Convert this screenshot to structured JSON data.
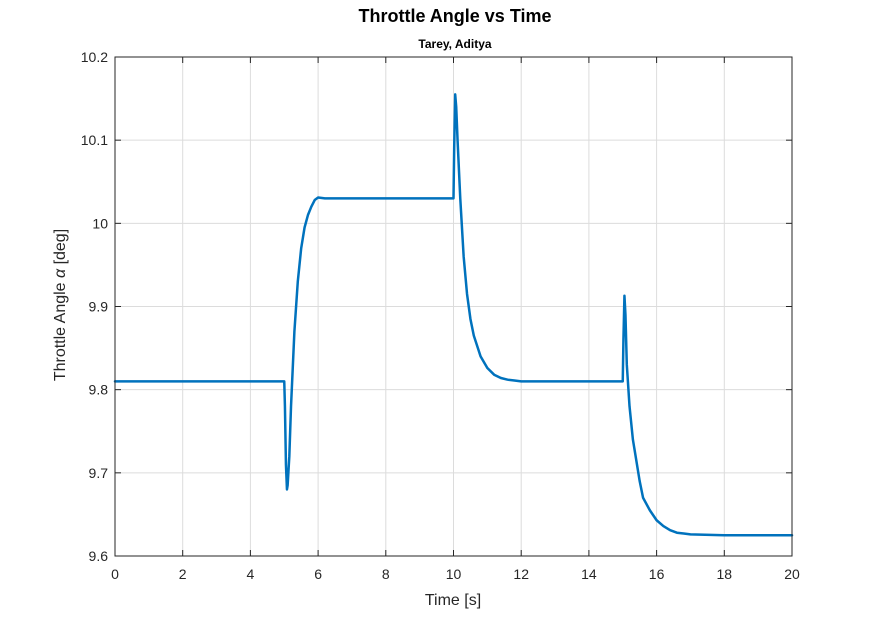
{
  "chart_data": {
    "type": "line",
    "title": "Throttle Angle vs Time",
    "subtitle": "Tarey, Aditya",
    "xlabel": "Time [s]",
    "ylabel_prefix": "Throttle Angle ",
    "ylabel_symbol": "α",
    "ylabel_suffix": " [deg]",
    "xlim": [
      0,
      20
    ],
    "ylim": [
      9.6,
      10.2
    ],
    "xticks": [
      "0",
      "2",
      "4",
      "6",
      "8",
      "10",
      "12",
      "14",
      "16",
      "18",
      "20"
    ],
    "yticks": [
      "9.6",
      "9.7",
      "9.8",
      "9.9",
      "10",
      "10.1",
      "10.2"
    ],
    "grid": true,
    "colors": {
      "line": "#0072BD",
      "grid": "#dcdcdc",
      "axis": "#262626"
    },
    "series": [
      {
        "x": [
          0,
          1,
          2,
          3,
          4,
          5.0,
          5.02,
          5.05,
          5.08,
          5.1,
          5.15,
          5.2,
          5.3,
          5.4,
          5.5,
          5.6,
          5.7,
          5.8,
          5.9,
          6.0,
          6.2,
          6.5,
          7,
          8,
          9,
          10.0,
          10.02,
          10.05,
          10.08,
          10.12,
          10.2,
          10.3,
          10.4,
          10.5,
          10.6,
          10.8,
          11.0,
          11.2,
          11.4,
          11.6,
          11.8,
          12,
          13,
          14,
          15.0,
          15.02,
          15.05,
          15.08,
          15.12,
          15.2,
          15.3,
          15.4,
          15.5,
          15.6,
          15.8,
          16.0,
          16.2,
          16.4,
          16.6,
          16.8,
          17,
          18,
          19,
          20
        ],
        "y": [
          9.81,
          9.81,
          9.81,
          9.81,
          9.81,
          9.81,
          9.78,
          9.71,
          9.68,
          9.685,
          9.72,
          9.78,
          9.87,
          9.93,
          9.97,
          9.995,
          10.01,
          10.02,
          10.028,
          10.031,
          10.03,
          10.03,
          10.03,
          10.03,
          10.03,
          10.03,
          10.09,
          10.155,
          10.14,
          10.1,
          10.03,
          9.96,
          9.915,
          9.885,
          9.865,
          9.84,
          9.826,
          9.818,
          9.814,
          9.812,
          9.811,
          9.81,
          9.81,
          9.81,
          9.81,
          9.86,
          9.913,
          9.89,
          9.83,
          9.78,
          9.74,
          9.715,
          9.69,
          9.67,
          9.655,
          9.643,
          9.636,
          9.631,
          9.628,
          9.627,
          9.626,
          9.625,
          9.625,
          9.625
        ]
      }
    ]
  }
}
